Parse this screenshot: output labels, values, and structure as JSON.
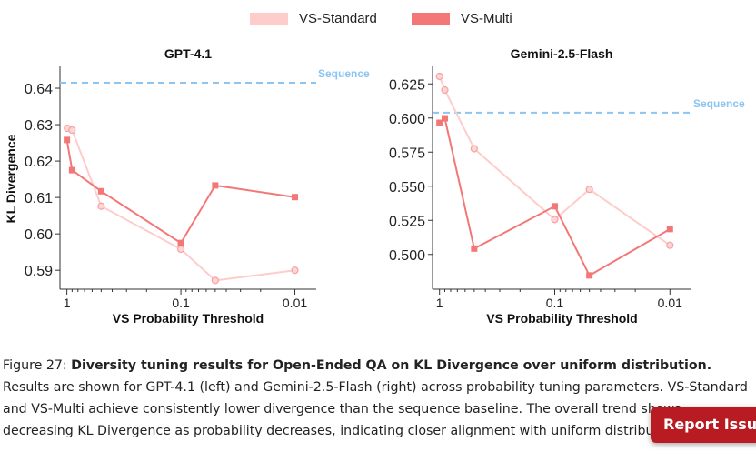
{
  "legend": [
    {
      "label": "VS-Standard",
      "color": "#ffcccc"
    },
    {
      "label": "VS-Multi",
      "color": "#f47777"
    }
  ],
  "chart_data": [
    {
      "type": "line",
      "title": "GPT-4.1",
      "xlabel": "VS Probability Threshold",
      "ylabel": "KL Divergence",
      "x_scale": "log-reversed",
      "x_ticks": [
        1,
        0.1,
        0.01
      ],
      "x_tick_labels": [
        "1",
        "0.1",
        "0.01"
      ],
      "y_ticks": [
        0.59,
        0.6,
        0.61,
        0.62,
        0.63,
        0.64
      ],
      "y_tick_labels": [
        "0.59",
        "0.60",
        "0.61",
        "0.62",
        "0.63",
        "0.64"
      ],
      "ylim": [
        0.5848,
        0.6455
      ],
      "xlim": [
        1.15,
        0.0065
      ],
      "baseline": {
        "label": "Sequence",
        "value": 0.6415
      },
      "series": [
        {
          "name": "VS-Standard",
          "x": [
            0.99,
            0.9,
            0.5,
            0.1,
            0.05,
            0.01
          ],
          "values": [
            0.629,
            0.6285,
            0.6076,
            0.5958,
            0.5872,
            0.59
          ]
        },
        {
          "name": "VS-Multi",
          "x": [
            1.0,
            0.9,
            0.5,
            0.1,
            0.05,
            0.01
          ],
          "values": [
            0.6258,
            0.6175,
            0.6117,
            0.5975,
            0.6133,
            0.6101
          ]
        }
      ]
    },
    {
      "type": "line",
      "title": "Gemini-2.5-Flash",
      "xlabel": "VS Probability Threshold",
      "ylabel": "",
      "x_scale": "log-reversed",
      "x_ticks": [
        1,
        0.1,
        0.01
      ],
      "x_tick_labels": [
        "1",
        "0.1",
        "0.01"
      ],
      "y_ticks": [
        0.5,
        0.525,
        0.55,
        0.575,
        0.6,
        0.625
      ],
      "y_tick_labels": [
        "0.500",
        "0.525",
        "0.550",
        "0.575",
        "0.600",
        "0.625"
      ],
      "ylim": [
        0.4745,
        0.6365
      ],
      "xlim": [
        1.15,
        0.0065
      ],
      "baseline": {
        "label": "Sequence",
        "value": 0.6039
      },
      "series": [
        {
          "name": "VS-Standard",
          "x": [
            1.0,
            0.9,
            0.5,
            0.1,
            0.05,
            0.01
          ],
          "values": [
            0.6305,
            0.6205,
            0.5775,
            0.5256,
            0.5477,
            0.5067
          ]
        },
        {
          "name": "VS-Multi",
          "x": [
            1.0,
            0.9,
            0.5,
            0.1,
            0.05,
            0.01
          ],
          "values": [
            0.5965,
            0.5998,
            0.5043,
            0.5353,
            0.4846,
            0.5186
          ]
        }
      ]
    }
  ],
  "caption": {
    "figure_label": "Figure 27: ",
    "bold_text": "Diversity tuning results for Open-Ended QA on KL Divergence over uniform distribution.",
    "body_text": " Results are shown for GPT-4.1 (left) and Gemini-2.5-Flash (right) across probability tuning parameters. VS-Standard and VS-Multi achieve consistently lower divergence than the sequence baseline. The overall trend shows decreasing KL Divergence as probability decreases, indicating closer alignment with uniform distribution."
  },
  "report_issue_label": "Report Issue",
  "colors": {
    "standard_line": "#ffcccc",
    "standard_marker": "#f4a3a3",
    "multi_line": "#f47777",
    "baseline": "#8cc4f2",
    "axis": "#333333"
  }
}
